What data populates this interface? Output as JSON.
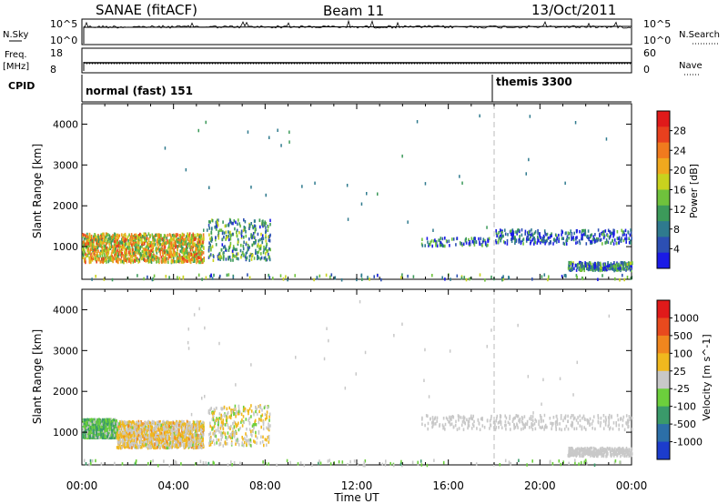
{
  "header": {
    "title": "SANAE (fitACF)",
    "beam": "Beam 11",
    "date": "13/Oct/2011"
  },
  "housekeeping": {
    "nsky_label": "N.Sky",
    "nsearch_label": "N.Search",
    "nsky_ticks": [
      "10^5",
      "10^0"
    ],
    "nsearch_ticks": [
      "10^5",
      "10^0"
    ],
    "freq_label": "Freq.",
    "freq_unit": "[MHz]",
    "freq_ticks": [
      "18",
      "8"
    ],
    "nave_label": "Nave",
    "nave_ticks": [
      "60",
      "0"
    ],
    "cpid_label": "CPID",
    "cpid_segments": [
      {
        "label": "normal (fast) 151",
        "start_hour": 0
      },
      {
        "label": "themis 3300",
        "start_hour": 18
      }
    ]
  },
  "chart_data": [
    {
      "type": "heatmap",
      "name": "power-panel",
      "xlabel": "",
      "ylabel": "Slant Range [km]",
      "x_range_hours": [
        0,
        24
      ],
      "ylim": [
        200,
        4500
      ],
      "y_ticks": [
        1000,
        2000,
        3000,
        4000
      ],
      "colorbar": {
        "label": "Power [dB]",
        "ticks": [
          "28",
          "24",
          "20",
          "16",
          "12",
          "8",
          "4"
        ],
        "range": [
          0,
          30
        ],
        "colors": [
          "#1a1ae6",
          "#2c4fb3",
          "#2f7a8e",
          "#3c9a5a",
          "#6fc23c",
          "#c8d21e",
          "#f0a81e",
          "#f07a1e",
          "#e8401e",
          "#e01a1a"
        ]
      },
      "scatter_regions": [
        {
          "from_hour": 0.0,
          "to_hour": 5.3,
          "range_km": [
            650,
            1350
          ],
          "power_db": 18,
          "density": "high"
        },
        {
          "from_hour": 5.5,
          "to_hour": 8.2,
          "range_km": [
            700,
            1700
          ],
          "power_db": 10,
          "density": "medium"
        },
        {
          "from_hour": 14.8,
          "to_hour": 17.8,
          "range_km": [
            1050,
            1250
          ],
          "power_db": 7,
          "density": "low"
        },
        {
          "from_hour": 18.0,
          "to_hour": 24.0,
          "range_km": [
            1100,
            1450
          ],
          "power_db": 6,
          "density": "medium"
        },
        {
          "from_hour": 21.2,
          "to_hour": 24.0,
          "range_km": [
            450,
            650
          ],
          "power_db": 8,
          "density": "medium"
        },
        {
          "from_hour": 0.0,
          "to_hour": 24.0,
          "range_km": [
            220,
            350
          ],
          "power_db": 10,
          "density": "sparse"
        }
      ]
    },
    {
      "type": "heatmap",
      "name": "velocity-panel",
      "xlabel": "Time UT",
      "ylabel": "Slant Range [km]",
      "x_ticks": [
        "00:00",
        "04:00",
        "08:00",
        "12:00",
        "16:00",
        "20:00",
        "00:00"
      ],
      "x_range_hours": [
        0,
        24
      ],
      "ylim": [
        200,
        4500
      ],
      "y_ticks": [
        1000,
        2000,
        3000,
        4000
      ],
      "colorbar": {
        "label": "Velocity [m s^-1]",
        "ticks": [
          "1000",
          "500",
          "100",
          "25",
          "-25",
          "-100",
          "-500",
          "-1000"
        ],
        "range": [
          -1000,
          1000
        ],
        "colors": [
          "#1c3ccc",
          "#2c6fa8",
          "#3a9a6a",
          "#6ccf3c",
          "#c8c8c8",
          "#f0b81e",
          "#f0861e",
          "#e84a1e",
          "#e01a1a"
        ]
      },
      "scatter_regions": [
        {
          "from_hour": 0.0,
          "to_hour": 1.5,
          "range_km": [
            900,
            1350
          ],
          "velocity": -300,
          "density": "high"
        },
        {
          "from_hour": 1.5,
          "to_hour": 5.3,
          "range_km": [
            650,
            1300
          ],
          "velocity": 120,
          "density": "high"
        },
        {
          "from_hour": 5.5,
          "to_hour": 8.2,
          "range_km": [
            700,
            1700
          ],
          "velocity": 50,
          "density": "medium"
        },
        {
          "from_hour": 14.8,
          "to_hour": 24.0,
          "range_km": [
            1100,
            1450
          ],
          "velocity": 0,
          "density": "medium"
        },
        {
          "from_hour": 21.2,
          "to_hour": 24.0,
          "range_km": [
            450,
            650
          ],
          "velocity": 0,
          "density": "medium"
        },
        {
          "from_hour": 0.0,
          "to_hour": 24.0,
          "range_km": [
            220,
            350
          ],
          "velocity": -150,
          "density": "sparse"
        }
      ]
    }
  ]
}
